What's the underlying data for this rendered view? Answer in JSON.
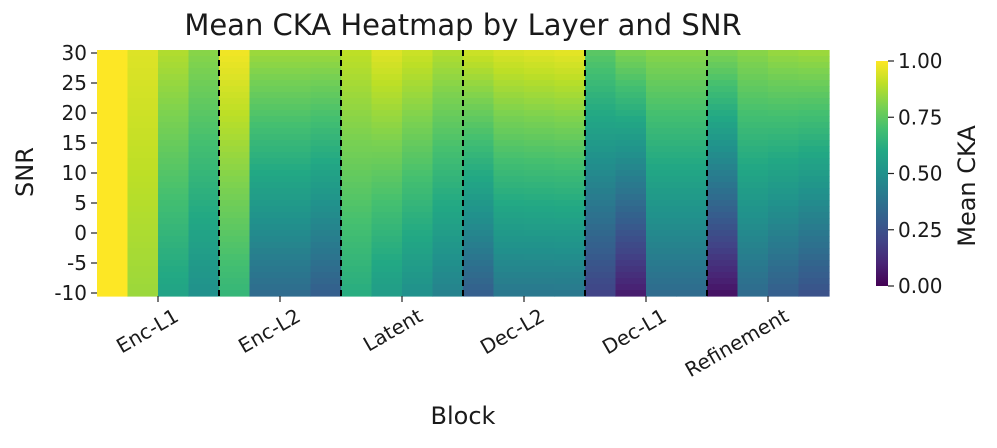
{
  "chart_data": {
    "type": "heatmap",
    "title": "Mean CKA Heatmap by Layer and SNR",
    "xlabel": "Block",
    "ylabel": "SNR",
    "colorbar_label": "Mean CKA",
    "colormap": "viridis",
    "vmin": 0.0,
    "vmax": 1.0,
    "colorbar_ticks": [
      "1.00",
      "0.75",
      "0.50",
      "0.25",
      "0.00"
    ],
    "blocks": [
      "Enc-L1",
      "Enc-L2",
      "Latent",
      "Dec-L2",
      "Dec-L1",
      "Refinement"
    ],
    "layers_per_block": 4,
    "snr_range": [
      -10,
      30
    ],
    "y_ticks": [
      "30",
      "25",
      "20",
      "15",
      "10",
      "5",
      "0",
      "-5",
      "-10"
    ],
    "block_separators": "dashed",
    "values_at_snr_top_30": [
      1.0,
      0.95,
      0.88,
      0.82,
      0.98,
      0.85,
      0.85,
      0.85,
      0.9,
      0.95,
      0.92,
      0.88,
      0.92,
      0.94,
      0.95,
      0.96,
      0.74,
      0.8,
      0.82,
      0.82,
      0.8,
      0.82,
      0.84,
      0.85
    ],
    "values_at_snr_bottom_neg10": [
      1.0,
      0.85,
      0.58,
      0.5,
      0.66,
      0.35,
      0.35,
      0.3,
      0.62,
      0.55,
      0.5,
      0.44,
      0.3,
      0.4,
      0.4,
      0.4,
      0.2,
      0.08,
      0.35,
      0.35,
      0.05,
      0.35,
      0.3,
      0.25
    ]
  }
}
